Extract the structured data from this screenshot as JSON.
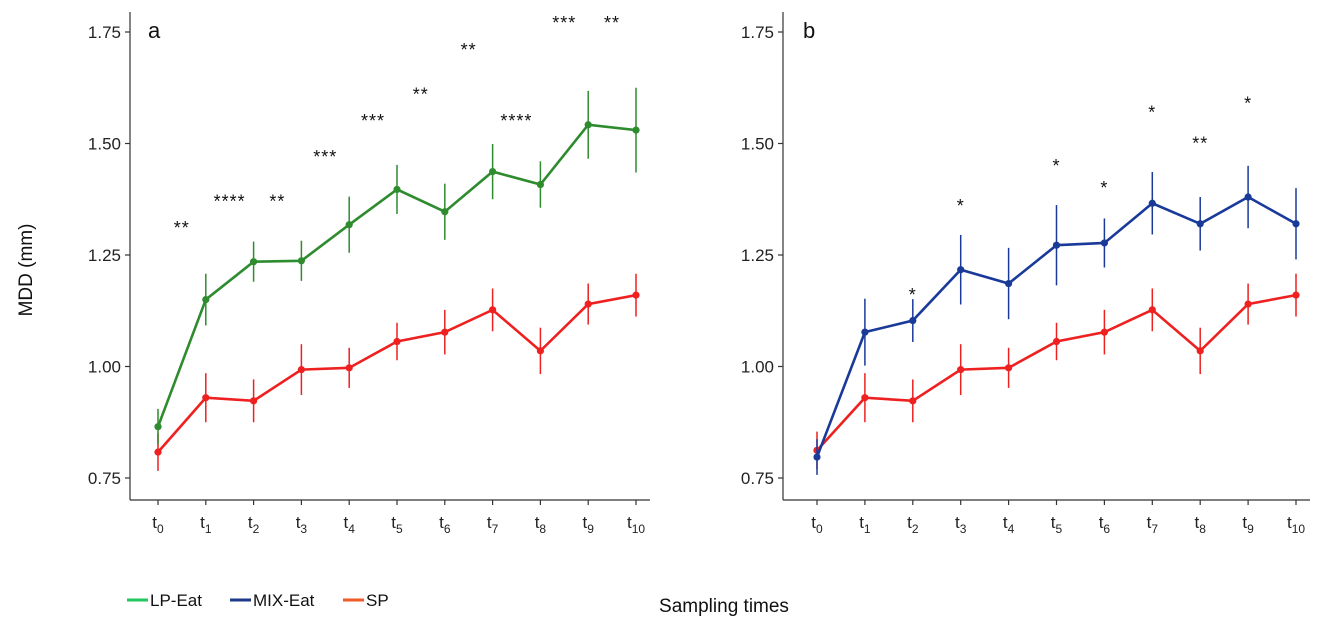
{
  "figure": {
    "ylabel": "MDD (mm)",
    "xlabel": "Sampling times",
    "legend": [
      {
        "label": "LP-Eat",
        "color": "#22c55e"
      },
      {
        "label": "MIX-Eat",
        "color": "#1e3a8a"
      },
      {
        "label": "SP",
        "color": "#f05a28"
      }
    ]
  },
  "chart_data": [
    {
      "type": "line",
      "panel": "a",
      "x": [
        "t0",
        "t1",
        "t2",
        "t3",
        "t4",
        "t5",
        "t6",
        "t7",
        "t8",
        "t9",
        "t10"
      ],
      "x_ticks": [
        {
          "base": "t",
          "sub": "0"
        },
        {
          "base": "t",
          "sub": "1"
        },
        {
          "base": "t",
          "sub": "2"
        },
        {
          "base": "t",
          "sub": "3"
        },
        {
          "base": "t",
          "sub": "4"
        },
        {
          "base": "t",
          "sub": "5"
        },
        {
          "base": "t",
          "sub": "6"
        },
        {
          "base": "t",
          "sub": "7"
        },
        {
          "base": "t",
          "sub": "8"
        },
        {
          "base": "t",
          "sub": "9"
        },
        {
          "base": "t",
          "sub": "10"
        }
      ],
      "y_ticks": [
        "0.75",
        "1.00",
        "1.25",
        "1.50",
        "1.75"
      ],
      "ylim": [
        0.7,
        1.8
      ],
      "series": [
        {
          "name": "LP-Eat",
          "color": "#2e8b2e",
          "values": [
            0.865,
            1.15,
            1.235,
            1.237,
            1.318,
            1.397,
            1.347,
            1.437,
            1.408,
            1.542,
            1.53
          ],
          "error": [
            0.04,
            0.058,
            0.045,
            0.045,
            0.063,
            0.055,
            0.063,
            0.062,
            0.052,
            0.076,
            0.095
          ]
        },
        {
          "name": "SP",
          "color": "#ee2020",
          "values": [
            0.808,
            0.93,
            0.923,
            0.993,
            0.997,
            1.056,
            1.077,
            1.127,
            1.035,
            1.14,
            1.16
          ],
          "error": [
            0.042,
            0.055,
            0.048,
            0.057,
            0.045,
            0.042,
            0.05,
            0.048,
            0.052,
            0.046,
            0.048
          ]
        }
      ],
      "annotations": [
        "",
        "**",
        "****",
        "**",
        "***",
        "***",
        "**",
        "**",
        "****",
        "***",
        "**"
      ],
      "annotation_y": [
        null,
        1.31,
        1.37,
        1.37,
        1.47,
        1.55,
        1.61,
        1.71,
        1.55,
        1.77,
        1.77
      ]
    },
    {
      "type": "line",
      "panel": "b",
      "x": [
        "t0",
        "t1",
        "t2",
        "t3",
        "t4",
        "t5",
        "t6",
        "t7",
        "t8",
        "t9",
        "t10"
      ],
      "x_ticks": [
        {
          "base": "t",
          "sub": "0"
        },
        {
          "base": "t",
          "sub": "1"
        },
        {
          "base": "t",
          "sub": "2"
        },
        {
          "base": "t",
          "sub": "3"
        },
        {
          "base": "t",
          "sub": "4"
        },
        {
          "base": "t",
          "sub": "5"
        },
        {
          "base": "t",
          "sub": "6"
        },
        {
          "base": "t",
          "sub": "7"
        },
        {
          "base": "t",
          "sub": "8"
        },
        {
          "base": "t",
          "sub": "9"
        },
        {
          "base": "t",
          "sub": "10"
        }
      ],
      "y_ticks": [
        "0.75",
        "1.00",
        "1.25",
        "1.50",
        "1.75"
      ],
      "ylim": [
        0.7,
        1.8
      ],
      "series": [
        {
          "name": "MIX-Eat",
          "color": "#1a3a9a",
          "values": [
            0.797,
            1.077,
            1.103,
            1.217,
            1.186,
            1.272,
            1.277,
            1.366,
            1.32,
            1.38,
            1.32
          ],
          "error": [
            0.04,
            0.075,
            0.048,
            0.078,
            0.08,
            0.09,
            0.055,
            0.07,
            0.06,
            0.07,
            0.08
          ]
        },
        {
          "name": "SP",
          "color": "#ee2020",
          "values": [
            0.812,
            0.93,
            0.923,
            0.993,
            0.997,
            1.056,
            1.077,
            1.127,
            1.035,
            1.14,
            1.16
          ],
          "error": [
            0.042,
            0.055,
            0.048,
            0.057,
            0.045,
            0.042,
            0.05,
            0.048,
            0.052,
            0.046,
            0.048
          ]
        }
      ],
      "annotations": [
        "",
        "",
        "*",
        "*",
        "",
        "*",
        "*",
        "*",
        "**",
        "*",
        ""
      ],
      "annotation_y": [
        null,
        null,
        1.16,
        1.36,
        null,
        1.45,
        1.4,
        1.57,
        1.5,
        1.59,
        null
      ]
    }
  ]
}
